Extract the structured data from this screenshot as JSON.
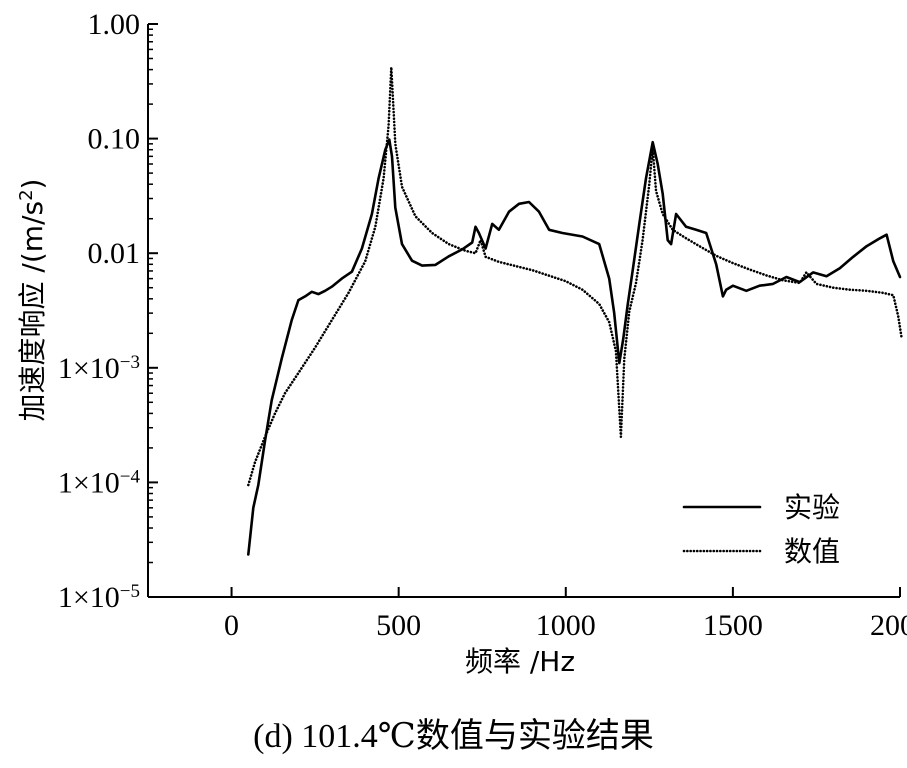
{
  "caption": "(d) 101.4℃数值与实验结果",
  "chart_data": {
    "type": "line",
    "xlabel": "频率 /Hz",
    "ylabel": "加速度响应 /(m/s²)",
    "ylabel_parts": {
      "base": "加速度响应 /(m/s",
      "sup": "2",
      "tail": ")"
    },
    "xlim": [
      -250,
      2000
    ],
    "ylim": [
      1e-05,
      1
    ],
    "yscale": "log",
    "grid": false,
    "legend_position": "bottom-right",
    "x_ticks": [
      {
        "value": 0,
        "label": "0"
      },
      {
        "value": 500,
        "label": "500"
      },
      {
        "value": 1000,
        "label": "1000"
      },
      {
        "value": 1500,
        "label": "1500"
      },
      {
        "value": 2000,
        "label": "2000"
      }
    ],
    "y_ticks": [
      {
        "value": 1,
        "base": "1.00",
        "sup": ""
      },
      {
        "value": 0.1,
        "base": "0.10",
        "sup": ""
      },
      {
        "value": 0.01,
        "base": "0.01",
        "sup": ""
      },
      {
        "value": 0.001,
        "base": "1×10",
        "sup": "−3"
      },
      {
        "value": 0.0001,
        "base": "1×10",
        "sup": "−4"
      },
      {
        "value": 1e-05,
        "base": "1×10",
        "sup": "−5"
      }
    ],
    "series": [
      {
        "name": "实验",
        "style": "solid",
        "color": "#000000",
        "x": [
          50,
          65,
          80,
          100,
          120,
          150,
          180,
          200,
          220,
          240,
          260,
          280,
          300,
          330,
          360,
          390,
          420,
          440,
          460,
          472,
          480,
          490,
          510,
          540,
          570,
          610,
          650,
          690,
          720,
          730,
          740,
          760,
          780,
          800,
          830,
          860,
          890,
          920,
          950,
          990,
          1050,
          1100,
          1130,
          1145,
          1160,
          1172,
          1185,
          1200,
          1220,
          1240,
          1260,
          1275,
          1290,
          1305,
          1315,
          1330,
          1360,
          1390,
          1420,
          1450,
          1470,
          1480,
          1500,
          1540,
          1580,
          1620,
          1660,
          1700,
          1740,
          1780,
          1820,
          1860,
          1900,
          1940,
          1960,
          1980,
          2000
        ],
        "y": [
          2.35e-05,
          6e-05,
          9.5e-05,
          0.00023,
          0.00052,
          0.0012,
          0.0026,
          0.0039,
          0.0042,
          0.0046,
          0.0044,
          0.0047,
          0.0051,
          0.006,
          0.0069,
          0.011,
          0.022,
          0.045,
          0.08,
          0.098,
          0.07,
          0.025,
          0.012,
          0.0086,
          0.0078,
          0.0079,
          0.0094,
          0.0108,
          0.0124,
          0.017,
          0.015,
          0.011,
          0.018,
          0.016,
          0.023,
          0.027,
          0.028,
          0.023,
          0.016,
          0.015,
          0.014,
          0.012,
          0.006,
          0.003,
          0.0011,
          0.0018,
          0.0035,
          0.007,
          0.018,
          0.045,
          0.093,
          0.06,
          0.033,
          0.013,
          0.012,
          0.022,
          0.017,
          0.016,
          0.015,
          0.008,
          0.0042,
          0.0048,
          0.0052,
          0.0047,
          0.0052,
          0.0054,
          0.0062,
          0.0056,
          0.0068,
          0.0063,
          0.0074,
          0.0093,
          0.0115,
          0.0135,
          0.0145,
          0.0085,
          0.0062
        ]
      },
      {
        "name": "数值",
        "style": "dotted",
        "color": "#000000",
        "x": [
          50,
          70,
          100,
          130,
          160,
          200,
          250,
          300,
          350,
          400,
          430,
          455,
          470,
          478,
          490,
          510,
          550,
          600,
          650,
          700,
          730,
          745,
          760,
          800,
          900,
          1000,
          1050,
          1100,
          1130,
          1150,
          1165,
          1175,
          1190,
          1210,
          1230,
          1250,
          1260,
          1270,
          1290,
          1320,
          1360,
          1400,
          1450,
          1500,
          1550,
          1600,
          1650,
          1700,
          1720,
          1750,
          1800,
          1850,
          1900,
          1950,
          1980,
          1995,
          2005
        ],
        "y": [
          9.5e-05,
          0.00015,
          0.00025,
          0.0004,
          0.0006,
          0.0009,
          0.0015,
          0.0026,
          0.0045,
          0.0085,
          0.017,
          0.045,
          0.13,
          0.42,
          0.09,
          0.038,
          0.021,
          0.015,
          0.012,
          0.0105,
          0.01,
          0.013,
          0.0093,
          0.0084,
          0.0071,
          0.0057,
          0.0048,
          0.0036,
          0.0025,
          0.0014,
          0.00025,
          0.0012,
          0.0031,
          0.0055,
          0.013,
          0.04,
          0.083,
          0.035,
          0.022,
          0.016,
          0.0135,
          0.0115,
          0.0095,
          0.0082,
          0.0072,
          0.0064,
          0.0058,
          0.0055,
          0.0068,
          0.0054,
          0.005,
          0.0048,
          0.0047,
          0.0045,
          0.0043,
          0.0028,
          0.0018
        ]
      }
    ]
  }
}
